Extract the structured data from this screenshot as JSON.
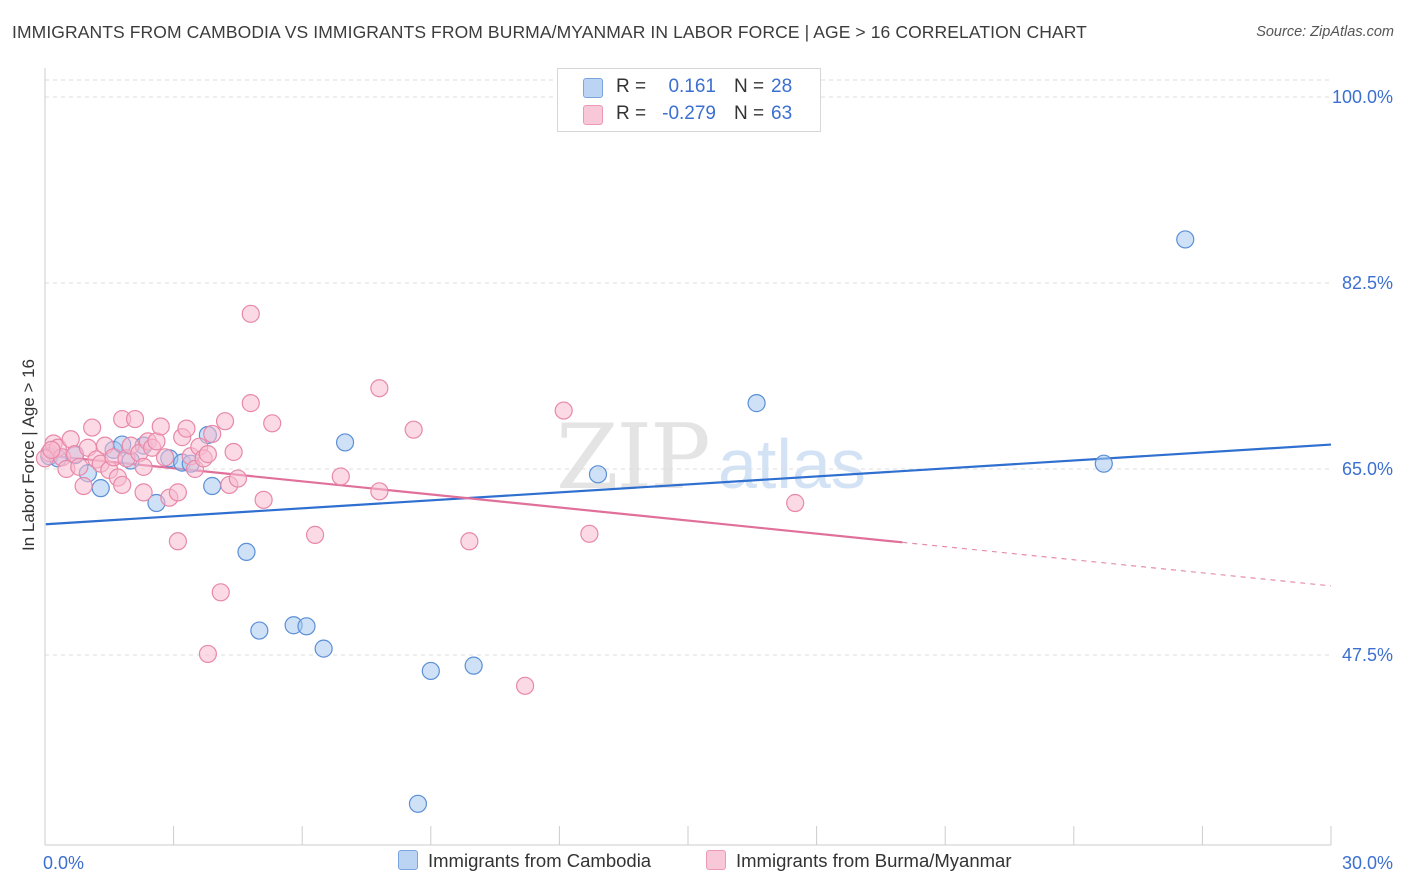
{
  "title": "IMMIGRANTS FROM CAMBODIA VS IMMIGRANTS FROM BURMA/MYANMAR IN LABOR FORCE | AGE > 16 CORRELATION CHART",
  "source": "Source: ZipAtlas.com",
  "watermark": {
    "zip": "ZIP",
    "atlas": "atlas"
  },
  "legend_top": {
    "rows": [
      {
        "r_label": "R =",
        "r_value": "0.161",
        "n_label": "N =",
        "n_value": "28"
      },
      {
        "r_label": "R =",
        "r_value": "-0.279",
        "n_label": "N =",
        "n_value": "63"
      }
    ]
  },
  "legend_bottom": {
    "cambodia": "Immigrants from Cambodia",
    "burma": "Immigrants from Burma/Myanmar"
  },
  "colors": {
    "cambodia_fill": "#a8c8f0",
    "cambodia_stroke": "#5b8fd6",
    "cambodia_line": "#2f6fd0",
    "burma_fill": "#f7bcd0",
    "burma_stroke": "#e888a8",
    "burma_line": "#e0709a",
    "tick_label": "#3b6fd0",
    "grid": "#dddddd"
  },
  "chart_data": {
    "type": "scatter",
    "title": "IMMIGRANTS FROM CAMBODIA VS IMMIGRANTS FROM BURMA/MYANMAR IN LABOR FORCE | AGE > 16 CORRELATION CHART",
    "xlabel": "",
    "ylabel": "In Labor Force | Age > 16",
    "xlim": [
      0,
      30
    ],
    "ylim": [
      30,
      102
    ],
    "x_tick_labels": [
      "0.0%",
      "30.0%"
    ],
    "y_ticks": [
      47.5,
      65.0,
      82.5,
      100.0
    ],
    "y_tick_labels": [
      "47.5%",
      "65.0%",
      "82.5%",
      "100.0%"
    ],
    "grid": true,
    "legend_position": "top-center",
    "series": [
      {
        "name": "Immigrants from Cambodia",
        "r": 0.161,
        "n": 28,
        "trend": {
          "x": [
            0,
            30
          ],
          "y": [
            59.8,
            67.3
          ],
          "dashed_after": null
        },
        "points": [
          [
            0.1,
            66.2
          ],
          [
            0.3,
            66.0
          ],
          [
            0.7,
            66.3
          ],
          [
            1.0,
            64.6
          ],
          [
            1.3,
            63.2
          ],
          [
            1.6,
            66.8
          ],
          [
            1.8,
            67.3
          ],
          [
            2.0,
            65.8
          ],
          [
            2.3,
            67.2
          ],
          [
            2.6,
            61.8
          ],
          [
            2.9,
            66.0
          ],
          [
            3.2,
            65.6
          ],
          [
            3.4,
            65.5
          ],
          [
            3.8,
            68.2
          ],
          [
            3.9,
            63.4
          ],
          [
            4.7,
            57.2
          ],
          [
            5.0,
            49.8
          ],
          [
            5.8,
            50.3
          ],
          [
            6.1,
            50.2
          ],
          [
            6.5,
            48.1
          ],
          [
            7.0,
            67.5
          ],
          [
            8.7,
            33.5
          ],
          [
            9.0,
            46.0
          ],
          [
            10.0,
            46.5
          ],
          [
            12.9,
            64.5
          ],
          [
            16.6,
            71.2
          ],
          [
            24.7,
            65.5
          ],
          [
            26.6,
            86.6
          ]
        ]
      },
      {
        "name": "Immigrants from Burma/Myanmar",
        "r": -0.279,
        "n": 63,
        "trend": {
          "x": [
            0,
            30
          ],
          "y": [
            66.3,
            54.0
          ],
          "dashed_after": 20
        },
        "points": [
          [
            0.1,
            66.5
          ],
          [
            0.2,
            67.4
          ],
          [
            0.3,
            67.0
          ],
          [
            0.4,
            66.1
          ],
          [
            0.5,
            65.0
          ],
          [
            0.6,
            67.8
          ],
          [
            0.7,
            66.4
          ],
          [
            0.8,
            65.2
          ],
          [
            0.9,
            63.4
          ],
          [
            1.0,
            67.0
          ],
          [
            1.1,
            68.9
          ],
          [
            1.2,
            65.9
          ],
          [
            1.3,
            65.5
          ],
          [
            1.4,
            67.2
          ],
          [
            1.5,
            64.9
          ],
          [
            1.6,
            66.1
          ],
          [
            1.7,
            64.2
          ],
          [
            1.8,
            63.5
          ],
          [
            1.8,
            69.7
          ],
          [
            1.9,
            66.0
          ],
          [
            2.0,
            67.2
          ],
          [
            2.1,
            69.7
          ],
          [
            2.2,
            66.5
          ],
          [
            2.3,
            65.2
          ],
          [
            2.3,
            62.8
          ],
          [
            2.4,
            67.6
          ],
          [
            2.5,
            67.0
          ],
          [
            2.6,
            67.6
          ],
          [
            2.7,
            69.0
          ],
          [
            2.8,
            66.1
          ],
          [
            2.9,
            62.3
          ],
          [
            3.1,
            62.8
          ],
          [
            3.1,
            58.2
          ],
          [
            3.2,
            68.0
          ],
          [
            3.3,
            68.8
          ],
          [
            3.4,
            66.2
          ],
          [
            3.5,
            65.0
          ],
          [
            3.6,
            67.1
          ],
          [
            3.7,
            66.0
          ],
          [
            3.8,
            66.4
          ],
          [
            3.8,
            47.6
          ],
          [
            3.9,
            68.3
          ],
          [
            4.1,
            53.4
          ],
          [
            4.2,
            69.5
          ],
          [
            4.3,
            63.5
          ],
          [
            4.4,
            66.6
          ],
          [
            4.5,
            64.1
          ],
          [
            4.8,
            71.2
          ],
          [
            4.8,
            79.6
          ],
          [
            5.1,
            62.1
          ],
          [
            5.3,
            69.3
          ],
          [
            6.3,
            58.8
          ],
          [
            6.9,
            64.3
          ],
          [
            7.8,
            72.6
          ],
          [
            7.8,
            62.9
          ],
          [
            8.6,
            68.7
          ],
          [
            9.9,
            58.2
          ],
          [
            11.2,
            44.6
          ],
          [
            12.1,
            70.5
          ],
          [
            12.7,
            58.9
          ],
          [
            17.5,
            61.8
          ],
          [
            0.0,
            66.0
          ],
          [
            0.15,
            66.8
          ]
        ]
      }
    ]
  }
}
